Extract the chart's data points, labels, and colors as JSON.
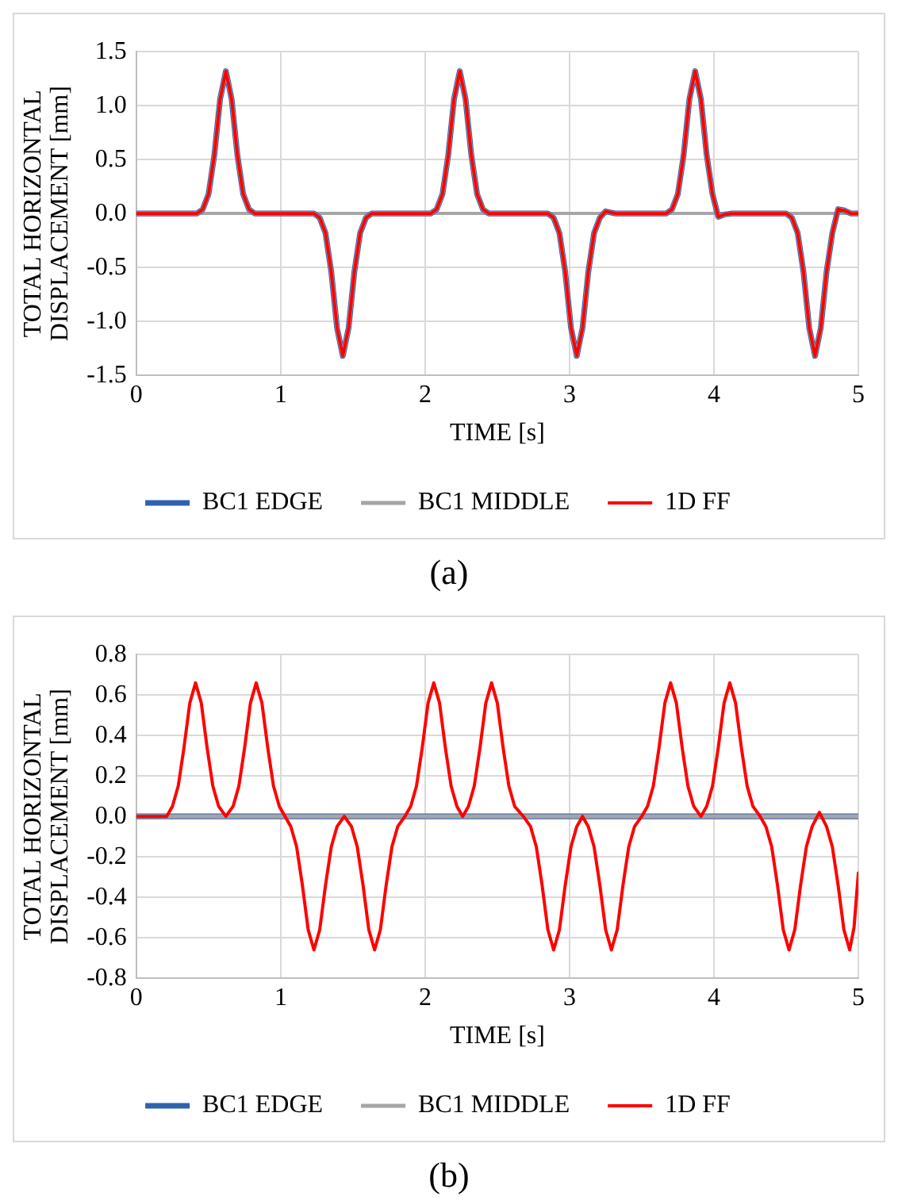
{
  "chart_data": [
    {
      "type": "line",
      "xlabel": "TIME [s]",
      "ylabel": "TOTAL HORIZONTAL DISPLACEMENT [mm]",
      "annotations": [
        "(a)"
      ],
      "grid": true,
      "legend": "bottom",
      "xlim": [
        0,
        5
      ],
      "xticks": [
        0,
        1,
        2,
        3,
        4,
        5
      ],
      "ylim": [
        -1.5,
        1.5
      ],
      "yticks": [
        -1.5,
        {
          "value": -1,
          "label": "-1.0"
        },
        -0.5,
        {
          "value": 0,
          "label": "0.0"
        },
        0.5,
        {
          "value": 1,
          "label": "1.0"
        },
        1.5
      ],
      "x": [
        0,
        0.42,
        0.46,
        0.5,
        0.54,
        0.58,
        0.62,
        0.66,
        0.7,
        0.74,
        0.78,
        0.82,
        1.23,
        1.27,
        1.31,
        1.35,
        1.39,
        1.43,
        1.47,
        1.51,
        1.55,
        1.59,
        1.63,
        2.04,
        2.08,
        2.12,
        2.16,
        2.2,
        2.24,
        2.28,
        2.32,
        2.36,
        2.4,
        2.44,
        2.85,
        2.89,
        2.93,
        2.97,
        3.01,
        3.05,
        3.09,
        3.13,
        3.17,
        3.21,
        3.25,
        3.32,
        3.67,
        3.71,
        3.75,
        3.79,
        3.83,
        3.87,
        3.91,
        3.95,
        3.99,
        4.03,
        4.07,
        4.12,
        4.5,
        4.54,
        4.58,
        4.62,
        4.66,
        4.7,
        4.74,
        4.78,
        4.82,
        4.86,
        4.9,
        4.95,
        5
      ],
      "series": [
        {
          "name": "BC1 EDGE",
          "color": "#2e63b0",
          "values": [
            0,
            0,
            0.04,
            0.18,
            0.54,
            1.06,
            1.32,
            1.06,
            0.54,
            0.18,
            0.04,
            0,
            0,
            -0.04,
            -0.18,
            -0.54,
            -1.06,
            -1.32,
            -1.06,
            -0.54,
            -0.18,
            -0.04,
            0,
            0,
            0.04,
            0.18,
            0.54,
            1.06,
            1.32,
            1.06,
            0.54,
            0.18,
            0.04,
            0,
            0,
            -0.04,
            -0.18,
            -0.54,
            -1.06,
            -1.32,
            -1.06,
            -0.54,
            -0.18,
            -0.04,
            0.02,
            0,
            0,
            0.04,
            0.18,
            0.54,
            1.06,
            1.32,
            1.06,
            0.54,
            0.18,
            -0.03,
            -0.01,
            0,
            0,
            -0.04,
            -0.18,
            -0.54,
            -1.06,
            -1.32,
            -1.06,
            -0.54,
            -0.18,
            0.04,
            0.03,
            0,
            0
          ]
        },
        {
          "name": "BC1 MIDDLE",
          "color": "#a5a5a5",
          "values": [
            0,
            0,
            0.04,
            0.18,
            0.54,
            1.06,
            1.32,
            1.06,
            0.54,
            0.18,
            0.04,
            0,
            0,
            -0.04,
            -0.18,
            -0.54,
            -1.06,
            -1.32,
            -1.06,
            -0.54,
            -0.18,
            -0.04,
            0,
            0,
            0.04,
            0.18,
            0.54,
            1.06,
            1.32,
            1.06,
            0.54,
            0.18,
            0.04,
            0,
            0,
            -0.04,
            -0.18,
            -0.54,
            -1.06,
            -1.32,
            -1.06,
            -0.54,
            -0.18,
            -0.04,
            0.02,
            0,
            0,
            0.04,
            0.18,
            0.54,
            1.06,
            1.32,
            1.06,
            0.54,
            0.18,
            -0.03,
            -0.01,
            0,
            0,
            -0.04,
            -0.18,
            -0.54,
            -1.06,
            -1.32,
            -1.06,
            -0.54,
            -0.18,
            0.04,
            0.03,
            0,
            0
          ]
        },
        {
          "name": "1D FF",
          "color": "#ff0000",
          "values": [
            0,
            0,
            0.04,
            0.18,
            0.54,
            1.06,
            1.32,
            1.06,
            0.54,
            0.18,
            0.04,
            0,
            0,
            -0.04,
            -0.18,
            -0.54,
            -1.06,
            -1.32,
            -1.06,
            -0.54,
            -0.18,
            -0.04,
            0,
            0,
            0.04,
            0.18,
            0.54,
            1.06,
            1.32,
            1.06,
            0.54,
            0.18,
            0.04,
            0,
            0,
            -0.04,
            -0.18,
            -0.54,
            -1.06,
            -1.32,
            -1.06,
            -0.54,
            -0.18,
            -0.04,
            0.02,
            0,
            0,
            0.04,
            0.18,
            0.54,
            1.06,
            1.32,
            1.06,
            0.54,
            0.18,
            -0.03,
            -0.01,
            0,
            0,
            -0.04,
            -0.18,
            -0.54,
            -1.06,
            -1.32,
            -1.06,
            -0.54,
            -0.18,
            0.04,
            0.03,
            0,
            0
          ]
        }
      ]
    },
    {
      "type": "line",
      "xlabel": "TIME [s]",
      "ylabel": "TOTAL HORIZONTAL DISPLACEMENT [mm]",
      "annotations": [
        "(b)"
      ],
      "grid": true,
      "legend": "bottom",
      "xlim": [
        0,
        5
      ],
      "xticks": [
        0,
        1,
        2,
        3,
        4,
        5
      ],
      "ylim": [
        -0.8,
        0.8
      ],
      "yticks": [
        -0.8,
        -0.6,
        -0.4,
        -0.2,
        {
          "value": 0,
          "label": "0.0"
        },
        0.2,
        0.4,
        0.6,
        0.8
      ],
      "series": [
        {
          "name": "BC1 EDGE",
          "color": "#2e63b0",
          "x": [
            0,
            5
          ],
          "values": [
            0,
            0
          ]
        },
        {
          "name": "BC1 MIDDLE",
          "color": "#a5a5a5",
          "x": [
            0,
            5
          ],
          "values": [
            0,
            0
          ]
        },
        {
          "name": "1D FF",
          "color": "#ff0000",
          "x": [
            0,
            0.21,
            0.25,
            0.29,
            0.33,
            0.37,
            0.41,
            0.45,
            0.49,
            0.53,
            0.57,
            0.62,
            0.67,
            0.71,
            0.75,
            0.79,
            0.83,
            0.87,
            0.91,
            0.95,
            0.99,
            1.03,
            1.07,
            1.11,
            1.15,
            1.19,
            1.23,
            1.27,
            1.31,
            1.35,
            1.39,
            1.44,
            1.49,
            1.53,
            1.57,
            1.61,
            1.65,
            1.69,
            1.73,
            1.77,
            1.81,
            1.86,
            1.9,
            1.94,
            1.98,
            2.02,
            2.06,
            2.1,
            2.14,
            2.18,
            2.22,
            2.26,
            2.3,
            2.34,
            2.38,
            2.42,
            2.46,
            2.5,
            2.54,
            2.58,
            2.62,
            2.68,
            2.73,
            2.77,
            2.81,
            2.85,
            2.89,
            2.93,
            2.97,
            3.01,
            3.05,
            3.09,
            3.13,
            3.17,
            3.21,
            3.25,
            3.29,
            3.33,
            3.37,
            3.41,
            3.45,
            3.5,
            3.54,
            3.58,
            3.62,
            3.66,
            3.7,
            3.74,
            3.78,
            3.82,
            3.86,
            3.91,
            3.95,
            3.99,
            4.03,
            4.07,
            4.11,
            4.15,
            4.19,
            4.23,
            4.27,
            4.32,
            4.36,
            4.4,
            4.44,
            4.48,
            4.52,
            4.56,
            4.6,
            4.64,
            4.68,
            4.73,
            4.78,
            4.82,
            4.86,
            4.9,
            4.94,
            4.97,
            5
          ],
          "values": [
            0,
            0,
            0.05,
            0.15,
            0.34,
            0.56,
            0.66,
            0.56,
            0.34,
            0.15,
            0.05,
            0,
            0.05,
            0.15,
            0.34,
            0.56,
            0.66,
            0.56,
            0.34,
            0.15,
            0.05,
            0,
            -0.05,
            -0.15,
            -0.34,
            -0.56,
            -0.66,
            -0.56,
            -0.34,
            -0.15,
            -0.05,
            0,
            -0.05,
            -0.15,
            -0.34,
            -0.56,
            -0.66,
            -0.56,
            -0.34,
            -0.15,
            -0.05,
            0,
            0.05,
            0.15,
            0.34,
            0.56,
            0.66,
            0.56,
            0.34,
            0.15,
            0.05,
            0,
            0.05,
            0.15,
            0.34,
            0.56,
            0.66,
            0.56,
            0.34,
            0.15,
            0.05,
            0,
            -0.05,
            -0.15,
            -0.34,
            -0.56,
            -0.66,
            -0.56,
            -0.34,
            -0.15,
            -0.05,
            0,
            -0.05,
            -0.15,
            -0.34,
            -0.56,
            -0.66,
            -0.56,
            -0.34,
            -0.15,
            -0.05,
            0,
            0.05,
            0.15,
            0.34,
            0.56,
            0.66,
            0.56,
            0.34,
            0.15,
            0.05,
            0,
            0.05,
            0.15,
            0.34,
            0.56,
            0.66,
            0.56,
            0.34,
            0.15,
            0.05,
            0,
            -0.05,
            -0.15,
            -0.34,
            -0.56,
            -0.66,
            -0.56,
            -0.34,
            -0.15,
            -0.05,
            0.02,
            -0.05,
            -0.15,
            -0.34,
            -0.56,
            -0.66,
            -0.55,
            -0.28
          ]
        }
      ]
    }
  ]
}
